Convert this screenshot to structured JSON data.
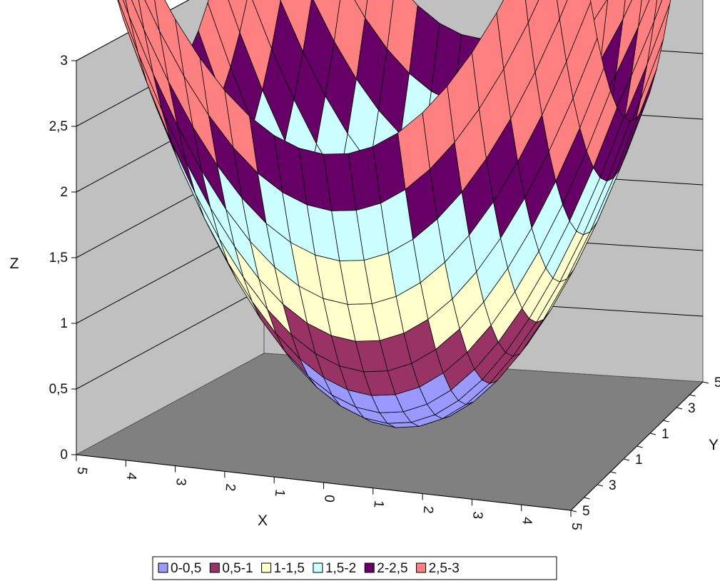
{
  "chart_data": {
    "type": "surface",
    "function": "z = 0.1*(x^2 + y^2)",
    "xlabel": "X",
    "ylabel": "Y",
    "zlabel": "Z",
    "xlim": [
      -5,
      5
    ],
    "ylim": [
      -5,
      5
    ],
    "zlim": [
      0,
      3
    ],
    "x_tick_labels": [
      "5",
      "4",
      "3",
      "2",
      "1",
      "0",
      "1",
      "2",
      "3",
      "4",
      "5"
    ],
    "y_tick_labels": [
      "5",
      "3",
      "1",
      "1",
      "3",
      "5"
    ],
    "z_tick_labels": [
      "0",
      "0,5",
      "1",
      "1,5",
      "2",
      "2,5",
      "3"
    ],
    "z_ticks": [
      0,
      0.5,
      1,
      1.5,
      2,
      2.5,
      3
    ],
    "grid_step": 0.5,
    "gridlines": true,
    "legend_position": "bottom",
    "bands": [
      {
        "label": "0-0,5",
        "min": 0,
        "max": 0.5,
        "color": "#9999ff"
      },
      {
        "label": "0,5-1",
        "min": 0.5,
        "max": 1,
        "color": "#993366"
      },
      {
        "label": "1-1,5",
        "min": 1,
        "max": 1.5,
        "color": "#ffffcc"
      },
      {
        "label": "1,5-2",
        "min": 1.5,
        "max": 2,
        "color": "#ccffff"
      },
      {
        "label": "2-2,5",
        "min": 2,
        "max": 2.5,
        "color": "#660066"
      },
      {
        "label": "2,5-3",
        "min": 2.5,
        "max": 3,
        "color": "#ff8080"
      }
    ]
  },
  "colors": {
    "back_wall": "#c0c0c0",
    "floor": "#808080",
    "mesh": "#000000",
    "gridline": "#000000"
  }
}
